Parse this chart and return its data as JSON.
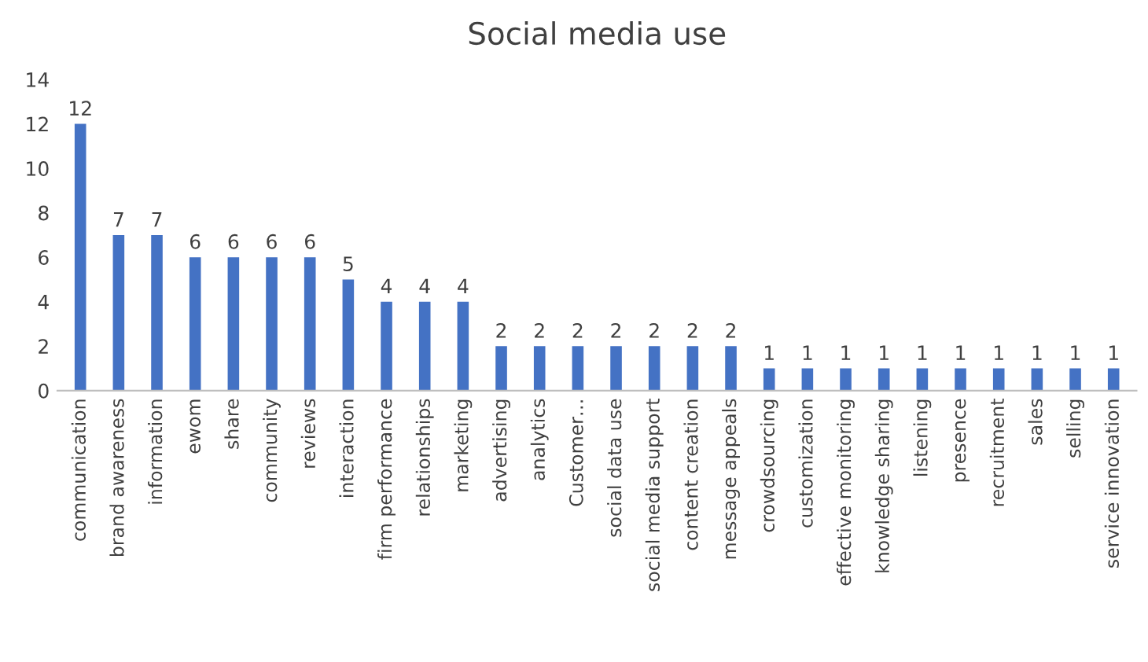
{
  "chart_data": {
    "type": "bar",
    "title": "Social media use",
    "categories": [
      "communication",
      "brand awareness",
      "information",
      "ewom",
      "share",
      "community",
      "reviews",
      "interaction",
      "firm performance",
      "relationships",
      "marketing",
      "advertising",
      "analytics",
      "Customer…",
      "social data use",
      "social media support",
      "content creation",
      "message appeals",
      "crowdsourcing",
      "customization",
      "effective monitoring",
      "knowledge sharing",
      "listening",
      "presence",
      "recruitment",
      "sales",
      "selling",
      "service innovation"
    ],
    "values": [
      12,
      7,
      7,
      6,
      6,
      6,
      6,
      5,
      4,
      4,
      4,
      2,
      2,
      2,
      2,
      2,
      2,
      2,
      1,
      1,
      1,
      1,
      1,
      1,
      1,
      1,
      1,
      1
    ],
    "color": "#4472c4",
    "ylim": [
      0,
      14
    ],
    "yticks": [
      0,
      2,
      4,
      6,
      8,
      10,
      12,
      14
    ],
    "data_labels": true,
    "grid": false,
    "legend": false
  }
}
